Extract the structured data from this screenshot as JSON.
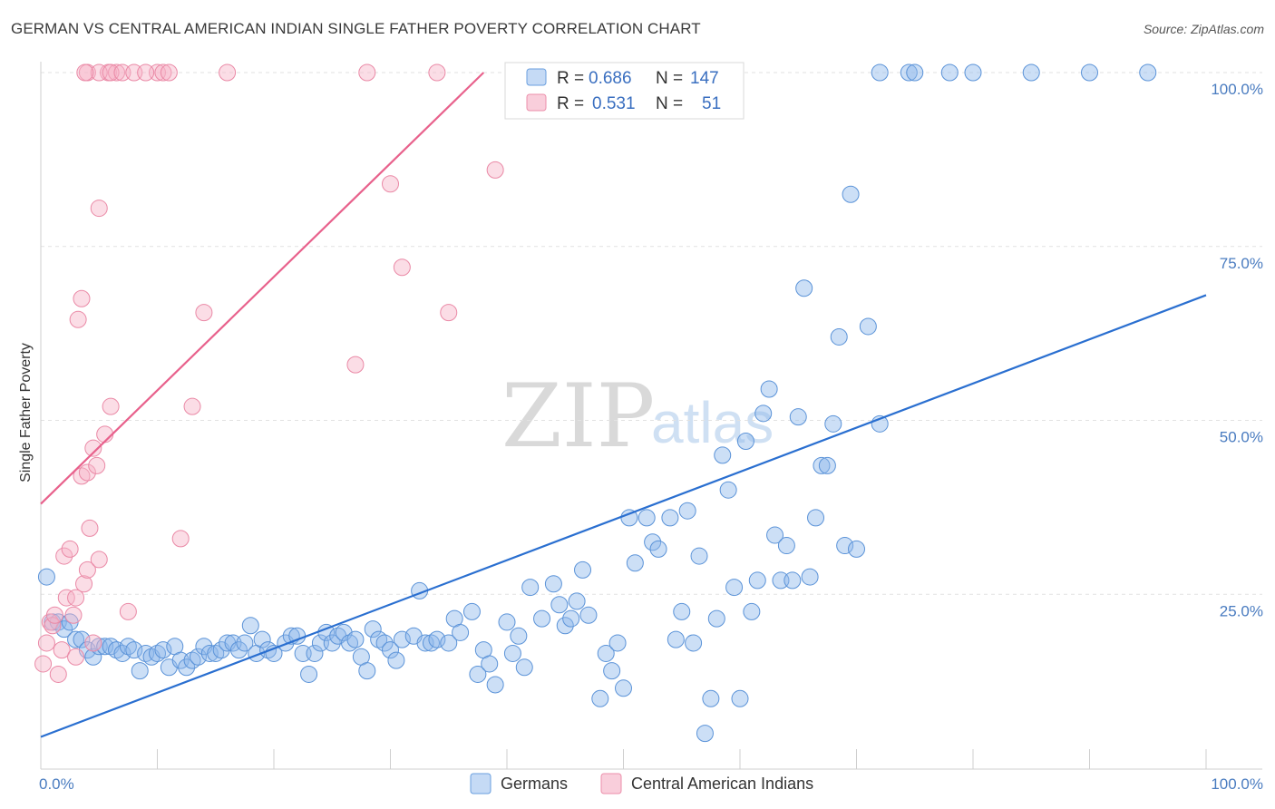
{
  "title": "GERMAN VS CENTRAL AMERICAN INDIAN SINGLE FATHER POVERTY CORRELATION CHART",
  "source": "Source: ZipAtlas.com",
  "watermark": {
    "zip": "ZIP",
    "atlas": "atlas"
  },
  "chart_data": {
    "type": "scatter",
    "title": "GERMAN VS CENTRAL AMERICAN INDIAN SINGLE FATHER POVERTY CORRELATION CHART",
    "xlabel": "",
    "ylabel": "Single Father Poverty",
    "xlim": [
      0,
      100
    ],
    "ylim": [
      0,
      100
    ],
    "x_tick_labels": [
      "0.0%",
      "100.0%"
    ],
    "y_ticks": [
      25,
      50,
      75,
      100
    ],
    "y_tick_labels": [
      "25.0%",
      "50.0%",
      "75.0%",
      "100.0%"
    ],
    "grid": true,
    "legend_top": [
      {
        "series": "Germans",
        "r_label": "R =",
        "r": "0.686",
        "n_label": "N =",
        "n": "147"
      },
      {
        "series": "Central American Indians",
        "r_label": "R =",
        "r": "0.531",
        "n_label": "N =",
        "n": "51"
      }
    ],
    "series": [
      {
        "name": "Germans",
        "color": "#8db8ec",
        "stroke": "#5b93d8",
        "line_color": "#2a6fd0",
        "trend": {
          "x": [
            0,
            100
          ],
          "y": [
            4.5,
            68
          ]
        },
        "points": [
          [
            0.5,
            27.5
          ],
          [
            1,
            21
          ],
          [
            1.5,
            21
          ],
          [
            2,
            20
          ],
          [
            2.5,
            21
          ],
          [
            3,
            18.5
          ],
          [
            3.5,
            18.5
          ],
          [
            4,
            17
          ],
          [
            4.5,
            16
          ],
          [
            5,
            17.5
          ],
          [
            5.5,
            17.5
          ],
          [
            6,
            17.5
          ],
          [
            6.5,
            17
          ],
          [
            7,
            16.5
          ],
          [
            7.5,
            17.5
          ],
          [
            8,
            17
          ],
          [
            8.5,
            14
          ],
          [
            9,
            16.5
          ],
          [
            9.5,
            16
          ],
          [
            10,
            16.5
          ],
          [
            10.5,
            17
          ],
          [
            11,
            14.5
          ],
          [
            11.5,
            17.5
          ],
          [
            12,
            15.5
          ],
          [
            12.5,
            14.5
          ],
          [
            13,
            15.5
          ],
          [
            13.5,
            16
          ],
          [
            14,
            17.5
          ],
          [
            14.5,
            16.5
          ],
          [
            15,
            16.5
          ],
          [
            15.5,
            17
          ],
          [
            16,
            18
          ],
          [
            16.5,
            18
          ],
          [
            17,
            17
          ],
          [
            17.5,
            18
          ],
          [
            18,
            20.5
          ],
          [
            18.5,
            16.5
          ],
          [
            19,
            18.5
          ],
          [
            19.5,
            17
          ],
          [
            20,
            16.5
          ],
          [
            21,
            18
          ],
          [
            21.5,
            19
          ],
          [
            22,
            19
          ],
          [
            22.5,
            16.5
          ],
          [
            23,
            13.5
          ],
          [
            23.5,
            16.5
          ],
          [
            24,
            18
          ],
          [
            24.5,
            19.5
          ],
          [
            25,
            18
          ],
          [
            25.5,
            19
          ],
          [
            26,
            19.5
          ],
          [
            26.5,
            18
          ],
          [
            27,
            18.5
          ],
          [
            27.5,
            16
          ],
          [
            28,
            14
          ],
          [
            28.5,
            20
          ],
          [
            29,
            18.5
          ],
          [
            29.5,
            18
          ],
          [
            30,
            17
          ],
          [
            30.5,
            15.5
          ],
          [
            31,
            18.5
          ],
          [
            32,
            19
          ],
          [
            32.5,
            25.5
          ],
          [
            33,
            18
          ],
          [
            33.5,
            18
          ],
          [
            34,
            18.5
          ],
          [
            35,
            18
          ],
          [
            35.5,
            21.5
          ],
          [
            36,
            19.5
          ],
          [
            37,
            22.5
          ],
          [
            37.5,
            13.5
          ],
          [
            38,
            17
          ],
          [
            38.5,
            15
          ],
          [
            39,
            12
          ],
          [
            40,
            21
          ],
          [
            40.5,
            16.5
          ],
          [
            41,
            19
          ],
          [
            41.5,
            14.5
          ],
          [
            42,
            26
          ],
          [
            43,
            21.5
          ],
          [
            44,
            26.5
          ],
          [
            44.5,
            23.5
          ],
          [
            45,
            20.5
          ],
          [
            45.5,
            21.5
          ],
          [
            46,
            24
          ],
          [
            46.5,
            28.5
          ],
          [
            47,
            22
          ],
          [
            48,
            10
          ],
          [
            48.5,
            16.5
          ],
          [
            49,
            14
          ],
          [
            49.5,
            18
          ],
          [
            50,
            11.5
          ],
          [
            50.5,
            36
          ],
          [
            51,
            29.5
          ],
          [
            52,
            36
          ],
          [
            52.5,
            32.5
          ],
          [
            53,
            31.5
          ],
          [
            54,
            36
          ],
          [
            54.5,
            18.5
          ],
          [
            55,
            22.5
          ],
          [
            55.5,
            37
          ],
          [
            56,
            18
          ],
          [
            56.5,
            30.5
          ],
          [
            57,
            5
          ],
          [
            57.5,
            10
          ],
          [
            58,
            21.5
          ],
          [
            58.5,
            45
          ],
          [
            59,
            40
          ],
          [
            59.5,
            26
          ],
          [
            60,
            10
          ],
          [
            60.5,
            47
          ],
          [
            61,
            22.5
          ],
          [
            61.5,
            27
          ],
          [
            62,
            51
          ],
          [
            62.5,
            54.5
          ],
          [
            63,
            33.5
          ],
          [
            63.5,
            27
          ],
          [
            64,
            32
          ],
          [
            64.5,
            27
          ],
          [
            65,
            50.5
          ],
          [
            65.5,
            69
          ],
          [
            66,
            27.5
          ],
          [
            66.5,
            36
          ],
          [
            67,
            43.5
          ],
          [
            67.5,
            43.5
          ],
          [
            68,
            49.5
          ],
          [
            68.5,
            62
          ],
          [
            69,
            32
          ],
          [
            69.5,
            82.5
          ],
          [
            70,
            31.5
          ],
          [
            71,
            63.5
          ],
          [
            72,
            49.5
          ],
          [
            72,
            100
          ],
          [
            74.5,
            100
          ],
          [
            75,
            100
          ],
          [
            78,
            100
          ],
          [
            80,
            100
          ],
          [
            85,
            100
          ],
          [
            90,
            100
          ],
          [
            95,
            100
          ]
        ]
      },
      {
        "name": "Central American Indians",
        "color": "#f6b3c8",
        "stroke": "#ea89a6",
        "line_color": "#e8618c",
        "trend": {
          "x": [
            0,
            38
          ],
          "y": [
            38,
            100
          ]
        },
        "points": [
          [
            0.2,
            15
          ],
          [
            0.5,
            18
          ],
          [
            0.8,
            21
          ],
          [
            1,
            20.5
          ],
          [
            1.2,
            22
          ],
          [
            1.5,
            13.5
          ],
          [
            1.8,
            17
          ],
          [
            2,
            30.5
          ],
          [
            2.2,
            24.5
          ],
          [
            2.5,
            31.5
          ],
          [
            2.8,
            22
          ],
          [
            3,
            16
          ],
          [
            3,
            24.5
          ],
          [
            3.2,
            64.5
          ],
          [
            3.5,
            42
          ],
          [
            3.5,
            67.5
          ],
          [
            3.7,
            26.5
          ],
          [
            4,
            42.5
          ],
          [
            4,
            28.5
          ],
          [
            4.2,
            34.5
          ],
          [
            4.5,
            46
          ],
          [
            4.5,
            18
          ],
          [
            4.8,
            43.5
          ],
          [
            5,
            30
          ],
          [
            5,
            80.5
          ],
          [
            5.5,
            48
          ],
          [
            5.8,
            100
          ],
          [
            6,
            52
          ],
          [
            6.5,
            100
          ],
          [
            7.5,
            22.5
          ],
          [
            10,
            100
          ],
          [
            12,
            33
          ],
          [
            13,
            52
          ],
          [
            14,
            65.5
          ],
          [
            16,
            100
          ],
          [
            27,
            58
          ],
          [
            28,
            100
          ],
          [
            30,
            84
          ],
          [
            31,
            72
          ],
          [
            34,
            100
          ],
          [
            35,
            65.5
          ],
          [
            39,
            86
          ],
          [
            4,
            100
          ],
          [
            5,
            100
          ],
          [
            6,
            100
          ],
          [
            7,
            100
          ],
          [
            8,
            100
          ],
          [
            9,
            100
          ],
          [
            10.5,
            100
          ],
          [
            11,
            100
          ],
          [
            3.8,
            100
          ]
        ]
      }
    ],
    "bottom_legend": [
      "Germans",
      "Central American Indians"
    ]
  }
}
